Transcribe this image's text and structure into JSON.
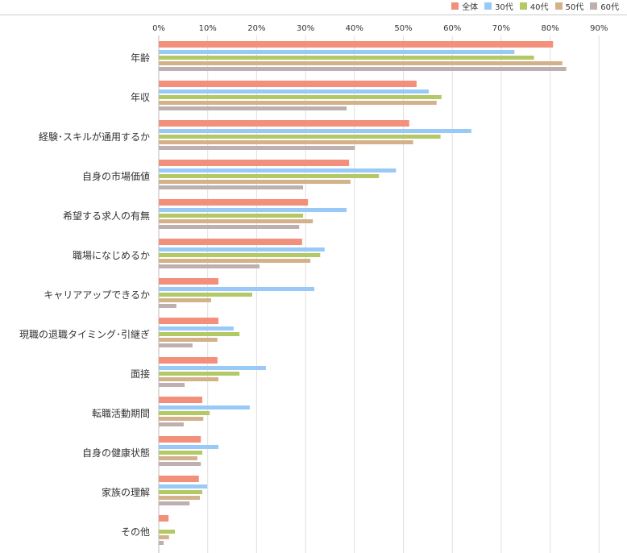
{
  "chart_data": {
    "type": "bar",
    "orientation": "horizontal",
    "title": "",
    "xlabel": "",
    "ylabel": "",
    "xlim": [
      0,
      90
    ],
    "grid": true,
    "legend_position": "top-right",
    "tick_labels": [
      "0%",
      "10%",
      "20%",
      "30%",
      "40%",
      "50%",
      "60%",
      "70%",
      "80%",
      "90%"
    ],
    "categories": [
      "年齢",
      "年収",
      "経験･スキルが通用するか",
      "自身の市場価値",
      "希望する求人の有無",
      "職場になじめるか",
      "キャリアアップできるか",
      "現職の退職タイミング･引継ぎ",
      "面接",
      "転職活動期間",
      "自身の健康状態",
      "家族の理解",
      "その他"
    ],
    "series": [
      {
        "name": "全体",
        "color": "#f2907c",
        "values": [
          80.6,
          52.7,
          51.2,
          38.9,
          30.5,
          29.3,
          12.2,
          12.2,
          12.0,
          8.9,
          8.6,
          8.2,
          2.0
        ]
      },
      {
        "name": "30代",
        "color": "#99c9f7",
        "values": [
          72.7,
          55.2,
          63.9,
          48.5,
          38.4,
          33.9,
          31.8,
          15.3,
          21.9,
          18.6,
          12.2,
          9.9,
          0
        ]
      },
      {
        "name": "40代",
        "color": "#b2c965",
        "values": [
          76.7,
          57.8,
          57.6,
          45.0,
          29.5,
          33.0,
          19.1,
          16.5,
          16.5,
          10.4,
          8.9,
          8.9,
          3.3
        ]
      },
      {
        "name": "50代",
        "color": "#d3b28b",
        "values": [
          82.5,
          56.8,
          52.0,
          39.2,
          31.5,
          31.0,
          10.7,
          12.0,
          12.2,
          9.1,
          7.9,
          8.4,
          2.1
        ]
      },
      {
        "name": "60代",
        "color": "#bfb0b0",
        "values": [
          83.3,
          38.4,
          40.1,
          29.5,
          28.7,
          20.6,
          3.6,
          6.9,
          5.3,
          5.1,
          8.6,
          6.3,
          1.0
        ]
      }
    ]
  }
}
